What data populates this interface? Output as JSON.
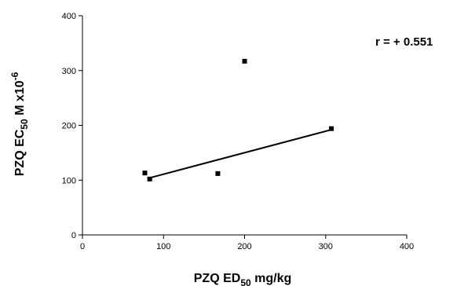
{
  "chart_data": {
    "type": "scatter",
    "xlabel": {
      "main": "PZQ ED",
      "sub": "50",
      "unit": " mg/kg"
    },
    "ylabel": {
      "main": "PZQ EC",
      "sub": "50",
      "unit": " M x10",
      "sup": "-6"
    },
    "annotation": "r = + 0.551",
    "xlim": [
      0,
      400
    ],
    "ylim": [
      0,
      400
    ],
    "x_ticks": [
      0,
      100,
      200,
      300,
      400
    ],
    "y_ticks": [
      0,
      100,
      200,
      300,
      400
    ],
    "grid": false,
    "points": [
      {
        "x": 77,
        "y": 113
      },
      {
        "x": 83,
        "y": 102
      },
      {
        "x": 167,
        "y": 112
      },
      {
        "x": 200,
        "y": 317
      },
      {
        "x": 307,
        "y": 194
      }
    ],
    "trendline": {
      "x": [
        80,
        307
      ],
      "y": [
        103,
        192
      ]
    },
    "colors": {
      "marker": "#000000",
      "line": "#000000",
      "axis": "#000000"
    }
  }
}
